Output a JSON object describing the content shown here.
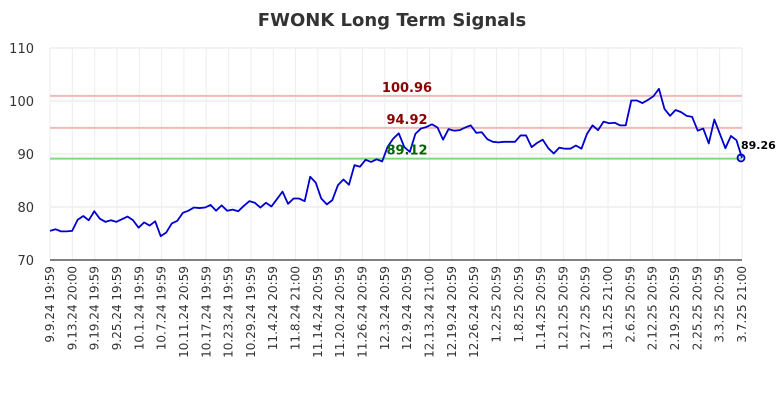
{
  "chart_data": {
    "type": "line",
    "title": "FWONK Long Term Signals",
    "xlabel": "",
    "ylabel": "",
    "ylim": [
      70,
      110
    ],
    "yticks": [
      70,
      80,
      90,
      100,
      110
    ],
    "grid": true,
    "legend": "none",
    "x_tick_labels": [
      "9.9.24 19:59",
      "9.13.24 20:00",
      "9.19.24 19:59",
      "9.25.24 19:59",
      "10.1.24 19:59",
      "10.7.24 19:59",
      "10.11.24 20:59",
      "10.17.24 19:59",
      "10.23.24 19:59",
      "10.29.24 19:59",
      "11.4.24 20:59",
      "11.8.24 21:00",
      "11.14.24 20:59",
      "11.20.24 20:59",
      "11.26.24 20:59",
      "12.3.24 20:59",
      "12.9.24 20:59",
      "12.13.24 21:00",
      "12.19.24 20:59",
      "12.26.24 20:59",
      "1.2.25 20:59",
      "1.8.25 20:59",
      "1.14.25 20:59",
      "1.21.25 20:59",
      "1.27.25 20:59",
      "1.31.25 21:00",
      "2.6.25 20:59",
      "2.12.25 20:59",
      "2.19.25 20:59",
      "2.25.25 20:59",
      "3.3.25 20:59",
      "3.7.25 21:00"
    ],
    "series": [
      {
        "color": "#0000cc",
        "values": [
          75.5,
          75.8,
          75.4,
          75.4,
          75.5,
          77.6,
          78.3,
          77.5,
          79.2,
          77.8,
          77.2,
          77.5,
          77.2,
          77.7,
          78.2,
          77.5,
          76.1,
          77.1,
          76.5,
          77.3,
          74.5,
          75.2,
          76.9,
          77.4,
          78.9,
          79.3,
          79.9,
          79.8,
          79.9,
          80.4,
          79.3,
          80.3,
          79.3,
          79.5,
          79.2,
          80.2,
          81.1,
          80.8,
          79.9,
          80.8,
          80.1,
          81.5,
          82.9,
          80.6,
          81.6,
          81.6,
          81.1,
          85.7,
          84.6,
          81.6,
          80.5,
          81.3,
          84.1,
          85.2,
          84.2,
          87.9,
          87.6,
          88.9,
          88.5,
          89.0,
          88.6,
          91.4,
          92.9,
          93.9,
          91.3,
          90.4,
          93.8,
          94.8,
          95.1,
          95.6,
          95.0,
          92.7,
          94.7,
          94.4,
          94.5,
          95.0,
          95.4,
          94.0,
          94.1,
          92.8,
          92.3,
          92.2,
          92.3,
          92.3,
          92.3,
          93.5,
          93.5,
          91.3,
          92.1,
          92.7,
          91.1,
          90.1,
          91.2,
          91.0,
          91.0,
          91.6,
          91.0,
          93.8,
          95.4,
          94.5,
          96.1,
          95.8,
          95.9,
          95.4,
          95.4,
          100.1,
          100.1,
          99.6,
          100.2,
          100.9,
          102.3,
          98.5,
          97.2,
          98.3,
          97.9,
          97.2,
          97.0,
          94.4,
          94.8,
          92.0,
          96.5,
          93.8,
          91.1,
          93.4,
          92.6,
          89.26
        ]
      }
    ],
    "levels": [
      {
        "value": 100.96,
        "label": "100.96",
        "line_color": "#f4b8b8",
        "text_color": "#8b0000"
      },
      {
        "value": 94.92,
        "label": "94.92",
        "line_color": "#f4b8b8",
        "text_color": "#8b0000"
      },
      {
        "value": 89.12,
        "label": "89.12",
        "line_color": "#80d880",
        "text_color": "#006400"
      }
    ],
    "last_value": {
      "value": 89.26,
      "label": "89.26",
      "marker_color": "#0000cc"
    }
  }
}
